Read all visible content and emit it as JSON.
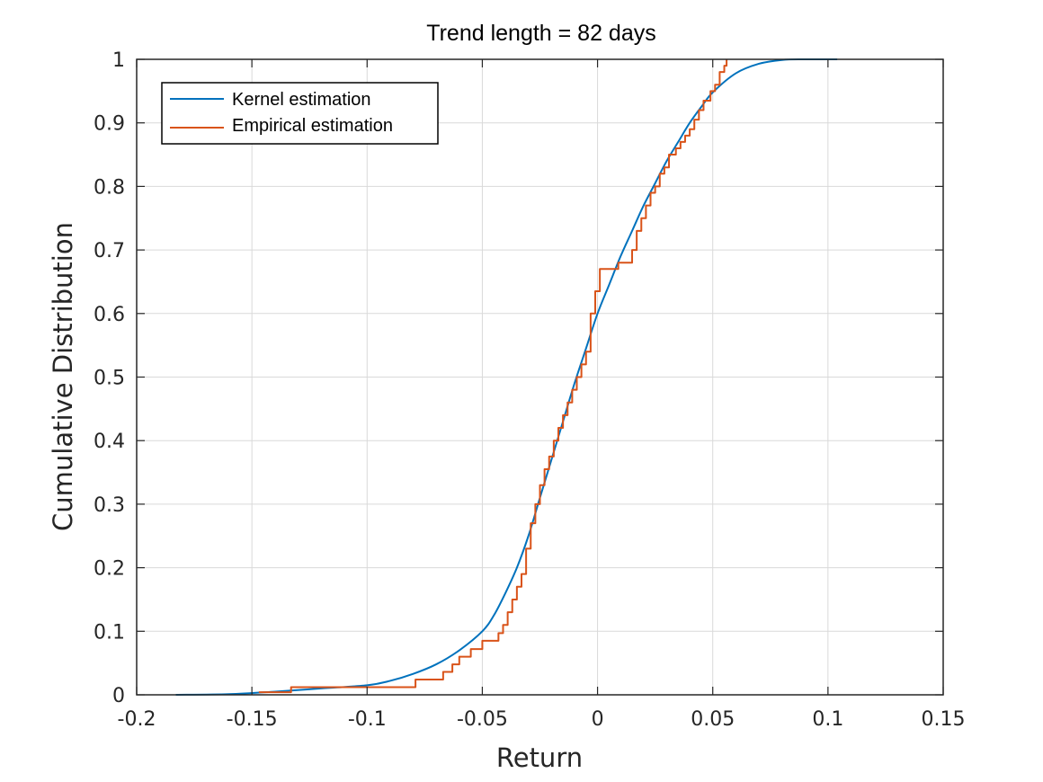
{
  "chart_data": {
    "type": "line",
    "title": "Trend length = 82 days",
    "xlabel": "Return",
    "ylabel": "Cumulative Distribution",
    "xlim": [
      -0.2,
      0.15
    ],
    "ylim": [
      0,
      1
    ],
    "xticks": [
      -0.2,
      -0.15,
      -0.1,
      -0.05,
      0,
      0.05,
      0.1,
      0.15
    ],
    "xtick_labels": [
      "-0.2",
      "-0.15",
      "-0.1",
      "-0.05",
      "0",
      "0.05",
      "0.1",
      "0.15"
    ],
    "yticks": [
      0,
      0.1,
      0.2,
      0.3,
      0.4,
      0.5,
      0.6,
      0.7,
      0.8,
      0.9,
      1
    ],
    "ytick_labels": [
      "0",
      "0.1",
      "0.2",
      "0.3",
      "0.4",
      "0.5",
      "0.6",
      "0.7",
      "0.8",
      "0.9",
      "1"
    ],
    "grid": true,
    "legend_position": "top-left",
    "colors": {
      "kernel": "#0072BD",
      "empirical": "#D95319",
      "grid": "#d9d9d9",
      "axis": "#262626"
    },
    "series": [
      {
        "name": "Kernel estimation",
        "style": "smooth",
        "x": [
          -0.183,
          -0.16,
          -0.14,
          -0.12,
          -0.1,
          -0.09,
          -0.08,
          -0.07,
          -0.06,
          -0.05,
          -0.045,
          -0.04,
          -0.035,
          -0.03,
          -0.025,
          -0.02,
          -0.015,
          -0.01,
          -0.005,
          0,
          0.005,
          0.01,
          0.015,
          0.02,
          0.025,
          0.03,
          0.035,
          0.04,
          0.045,
          0.05,
          0.06,
          0.07,
          0.08,
          0.09,
          0.104
        ],
        "y": [
          0,
          0.001,
          0.005,
          0.01,
          0.015,
          0.022,
          0.033,
          0.048,
          0.07,
          0.1,
          0.125,
          0.16,
          0.2,
          0.25,
          0.31,
          0.37,
          0.43,
          0.49,
          0.545,
          0.6,
          0.645,
          0.69,
          0.73,
          0.77,
          0.805,
          0.84,
          0.87,
          0.9,
          0.925,
          0.948,
          0.978,
          0.993,
          0.999,
          1,
          1
        ]
      },
      {
        "name": "Empirical estimation",
        "style": "step",
        "x": [
          -0.147,
          -0.133,
          -0.103,
          -0.079,
          -0.067,
          -0.063,
          -0.06,
          -0.055,
          -0.05,
          -0.043,
          -0.041,
          -0.039,
          -0.037,
          -0.035,
          -0.033,
          -0.031,
          -0.029,
          -0.027,
          -0.025,
          -0.023,
          -0.021,
          -0.019,
          -0.017,
          -0.015,
          -0.013,
          -0.011,
          -0.009,
          -0.007,
          -0.005,
          -0.003,
          -0.001,
          0.001,
          0.004,
          0.009,
          0.015,
          0.017,
          0.019,
          0.021,
          0.023,
          0.025,
          0.027,
          0.029,
          0.031,
          0.034,
          0.036,
          0.038,
          0.04,
          0.042,
          0.044,
          0.046,
          0.049,
          0.051,
          0.053,
          0.055,
          0.056
        ],
        "y": [
          0.004,
          0.012,
          0.012,
          0.024,
          0.036,
          0.048,
          0.06,
          0.072,
          0.085,
          0.097,
          0.11,
          0.13,
          0.15,
          0.17,
          0.19,
          0.23,
          0.27,
          0.3,
          0.33,
          0.355,
          0.375,
          0.4,
          0.42,
          0.44,
          0.46,
          0.48,
          0.5,
          0.52,
          0.54,
          0.6,
          0.635,
          0.67,
          0.67,
          0.68,
          0.7,
          0.73,
          0.75,
          0.77,
          0.79,
          0.8,
          0.82,
          0.83,
          0.85,
          0.86,
          0.87,
          0.88,
          0.89,
          0.905,
          0.92,
          0.935,
          0.95,
          0.96,
          0.98,
          0.99,
          1
        ]
      }
    ]
  }
}
